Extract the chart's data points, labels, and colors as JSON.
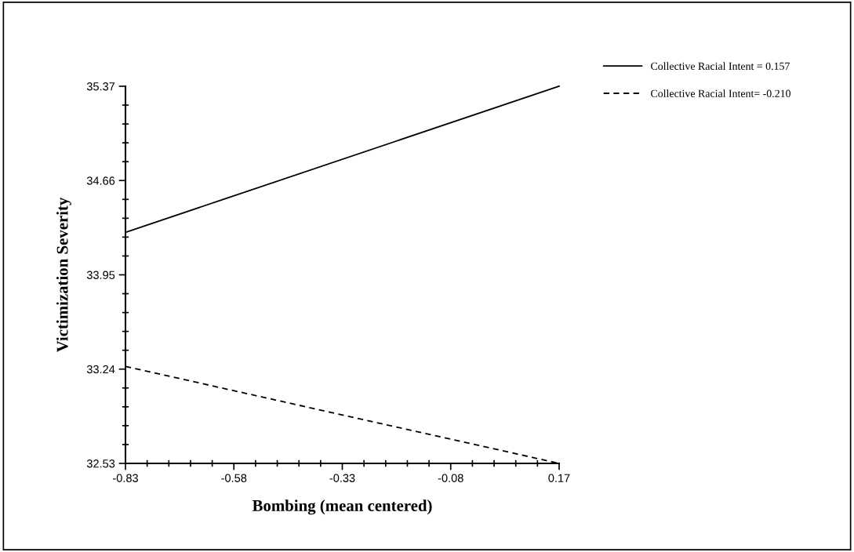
{
  "chart_data": {
    "type": "line",
    "xlabel": "Bombing (mean centered)",
    "ylabel": "Victimization Severity",
    "x": [
      -0.83,
      0.17
    ],
    "series": [
      {
        "name": "Collective Racial Intent = 0.157",
        "color": "#000000",
        "line_style": "solid",
        "values": [
          34.27,
          35.37
        ]
      },
      {
        "name": "Collective Racial Intent= -0.210",
        "color": "#000000",
        "line_style": "dashed",
        "values": [
          33.26,
          32.53
        ]
      }
    ],
    "xlim": [
      -0.83,
      0.17
    ],
    "xticks": [
      -0.83,
      -0.58,
      -0.33,
      -0.08,
      0.17
    ],
    "ylim": [
      32.53,
      35.37
    ],
    "yticks": [
      32.53,
      33.24,
      33.95,
      34.66,
      35.37
    ],
    "grid": false,
    "legend": "top right",
    "marker": "none"
  }
}
